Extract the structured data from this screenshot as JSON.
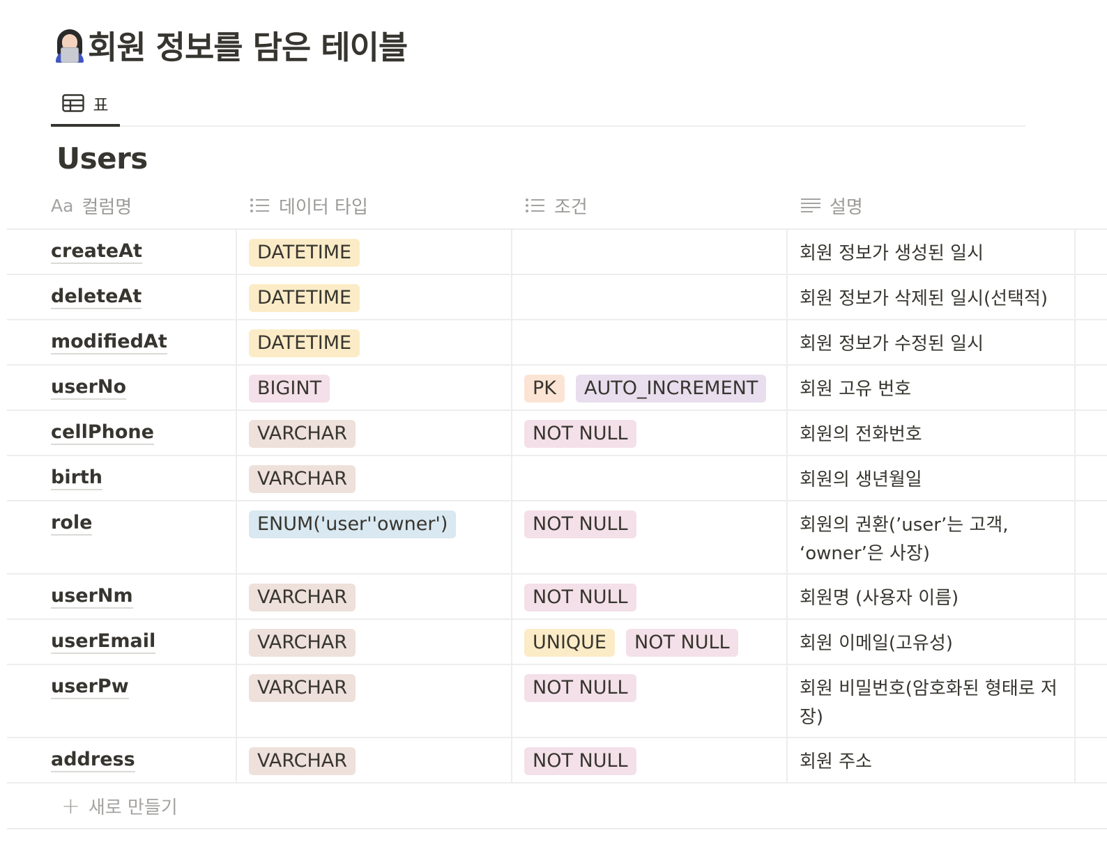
{
  "page": {
    "title": "회원 정보를 담은 테이블",
    "emoji": "woman-technologist-icon"
  },
  "view_tabs": [
    {
      "label": "표",
      "icon": "table-icon",
      "active": true
    }
  ],
  "database": {
    "title": "Users",
    "columns": [
      {
        "icon_text": "Aa",
        "label": "컬럼명"
      },
      {
        "icon": "multi-select-icon",
        "label": "데이터 타입"
      },
      {
        "icon": "multi-select-icon",
        "label": "조건"
      },
      {
        "icon": "text-icon",
        "label": "설명"
      }
    ],
    "rows": [
      {
        "name": "createAt",
        "types": [
          {
            "label": "DATETIME",
            "color": "#fbecc7"
          }
        ],
        "conditions": [],
        "description": "회원 정보가 생성된 일시"
      },
      {
        "name": "deleteAt",
        "types": [
          {
            "label": "DATETIME",
            "color": "#fbecc7"
          }
        ],
        "conditions": [],
        "description": "회원 정보가 삭제된 일시(선택적)"
      },
      {
        "name": "modifiedAt",
        "types": [
          {
            "label": "DATETIME",
            "color": "#fbecc7"
          }
        ],
        "conditions": [],
        "description": "회원 정보가 수정된 일시"
      },
      {
        "name": "userNo",
        "types": [
          {
            "label": "BIGINT",
            "color": "#f4e0e9"
          }
        ],
        "conditions": [
          {
            "label": "PK",
            "color": "#fbe4d4"
          },
          {
            "label": "AUTO_INCREMENT",
            "color": "#e8deee"
          }
        ],
        "description": "회원 고유 번호"
      },
      {
        "name": "cellPhone",
        "types": [
          {
            "label": "VARCHAR",
            "color": "#eee0da"
          }
        ],
        "conditions": [
          {
            "label": "NOT NULL",
            "color": "#f4e0e9"
          }
        ],
        "description": "회원의 전화번호"
      },
      {
        "name": "birth",
        "types": [
          {
            "label": "VARCHAR",
            "color": "#eee0da"
          }
        ],
        "conditions": [],
        "description": "회원의 생년월일"
      },
      {
        "name": "role",
        "types": [
          {
            "label": "ENUM('user''owner')",
            "color": "#d9e8f1"
          }
        ],
        "conditions": [
          {
            "label": "NOT NULL",
            "color": "#f4e0e9"
          }
        ],
        "description": "회원의 권환(’user’는 고객, ‘owner’은 사장)"
      },
      {
        "name": "userNm",
        "types": [
          {
            "label": "VARCHAR",
            "color": "#eee0da"
          }
        ],
        "conditions": [
          {
            "label": "NOT NULL",
            "color": "#f4e0e9"
          }
        ],
        "description": "회원명 (사용자 이름)"
      },
      {
        "name": "userEmail",
        "types": [
          {
            "label": "VARCHAR",
            "color": "#eee0da"
          }
        ],
        "conditions": [
          {
            "label": "UNIQUE",
            "color": "#fbecc7"
          },
          {
            "label": "NOT NULL",
            "color": "#f4e0e9"
          }
        ],
        "description": "회원 이메일(고유성)"
      },
      {
        "name": "userPw",
        "types": [
          {
            "label": "VARCHAR",
            "color": "#eee0da"
          }
        ],
        "conditions": [
          {
            "label": "NOT NULL",
            "color": "#f4e0e9"
          }
        ],
        "description": "회원 비밀번호(암호화된 형태로 저장)"
      },
      {
        "name": "address",
        "types": [
          {
            "label": "VARCHAR",
            "color": "#eee0da"
          }
        ],
        "conditions": [
          {
            "label": "NOT NULL",
            "color": "#f4e0e9"
          }
        ],
        "description": "회원 주소"
      }
    ],
    "new_row_label": "새로 만들기"
  }
}
